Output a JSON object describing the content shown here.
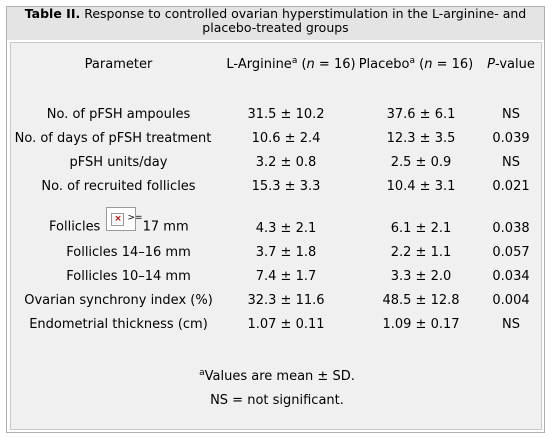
{
  "caption": {
    "label": "Table II.",
    "text": " Response to controlled ovarian hyperstimulation in the L-arginine- and placebo-treated groups"
  },
  "header": {
    "parameter": "Parameter",
    "larginine": "L-Arginine",
    "larginine_sup": "a",
    "larginine_n_open": " (",
    "n": "n",
    "larginine_n_close": " = 16)",
    "placebo": "Placebo",
    "placebo_sup": "a",
    "placebo_n_open": " (",
    "placebo_n_close": " = 16)",
    "p": "P",
    "p_rest": "-value"
  },
  "rows": [
    {
      "param": "No. of pFSH ampoules",
      "larg": "31.5 ± 10.2",
      "plac": "37.6 ± 6.1",
      "p": "NS"
    },
    {
      "param": "No. of days of pFSH treatment",
      "larg": "10.6 ± 2.4",
      "plac": "12.3 ± 3.5",
      "p": "0.039"
    },
    {
      "param": "pFSH units/day",
      "larg": "3.2 ± 0.8",
      "plac": "2.5 ± 0.9",
      "p": "NS"
    },
    {
      "param": "No. of recruited follicles",
      "larg": "15.3 ± 3.3",
      "plac": "10.4 ± 3.1",
      "p": "0.021"
    },
    {
      "param_pre": "Follicles ",
      "param_img_alt": ">=",
      "param_post": " 17 mm",
      "larg": "4.3 ± 2.1",
      "plac": "6.1 ± 2.1",
      "p": "0.038"
    },
    {
      "param": "Follicles 14–16 mm",
      "larg": "3.7 ± 1.8",
      "plac": "2.2 ± 1.1",
      "p": "0.057"
    },
    {
      "param": "Follicles 10–14 mm",
      "larg": "7.4 ± 1.7",
      "plac": "3.3 ± 2.0",
      "p": "0.034"
    },
    {
      "param": "Ovarian synchrony index (%)",
      "larg": "32.3 ± 11.6",
      "plac": "48.5 ± 12.8",
      "p": "0.004"
    },
    {
      "param": "Endometrial thickness (cm)",
      "larg": "1.07 ± 0.11",
      "plac": "1.09 ± 0.17",
      "p": "NS"
    }
  ],
  "footnotes": {
    "a_sup": "a",
    "a_text": "Values are mean ± SD.",
    "ns": "NS = not significant."
  },
  "colors": {
    "caption_bg": "#e4e4e4",
    "body_bg": "#f0f0f0",
    "broken_image_x": "#cc0000"
  }
}
